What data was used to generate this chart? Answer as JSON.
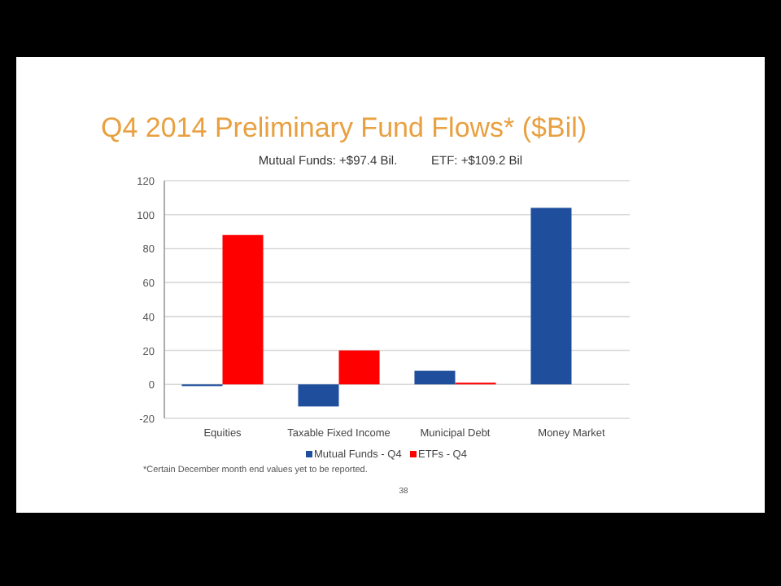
{
  "chart_data": {
    "type": "bar",
    "title": "Q4 2014 Preliminary Fund Flows* ($Bil)",
    "subtitle": "Mutual Funds: +$97.4 Bil.          ETF: +$109.2 Bil",
    "categories": [
      "Equities",
      "Taxable Fixed Income",
      "Municipal Debt",
      "Money Market"
    ],
    "series": [
      {
        "name": "Mutual Funds - Q4",
        "color": "#1f4e9c",
        "values": [
          -1,
          -13,
          8,
          104
        ]
      },
      {
        "name": "ETFs - Q4",
        "color": "#ff0000",
        "values": [
          88,
          20,
          1,
          null
        ]
      }
    ],
    "ylim": [
      -20,
      120
    ],
    "yticks": [
      -20,
      0,
      20,
      40,
      60,
      80,
      100,
      120
    ],
    "grid": "y",
    "legend": "bottom",
    "annotations": [
      "*Certain December month end values yet to be reported.",
      "38"
    ]
  }
}
